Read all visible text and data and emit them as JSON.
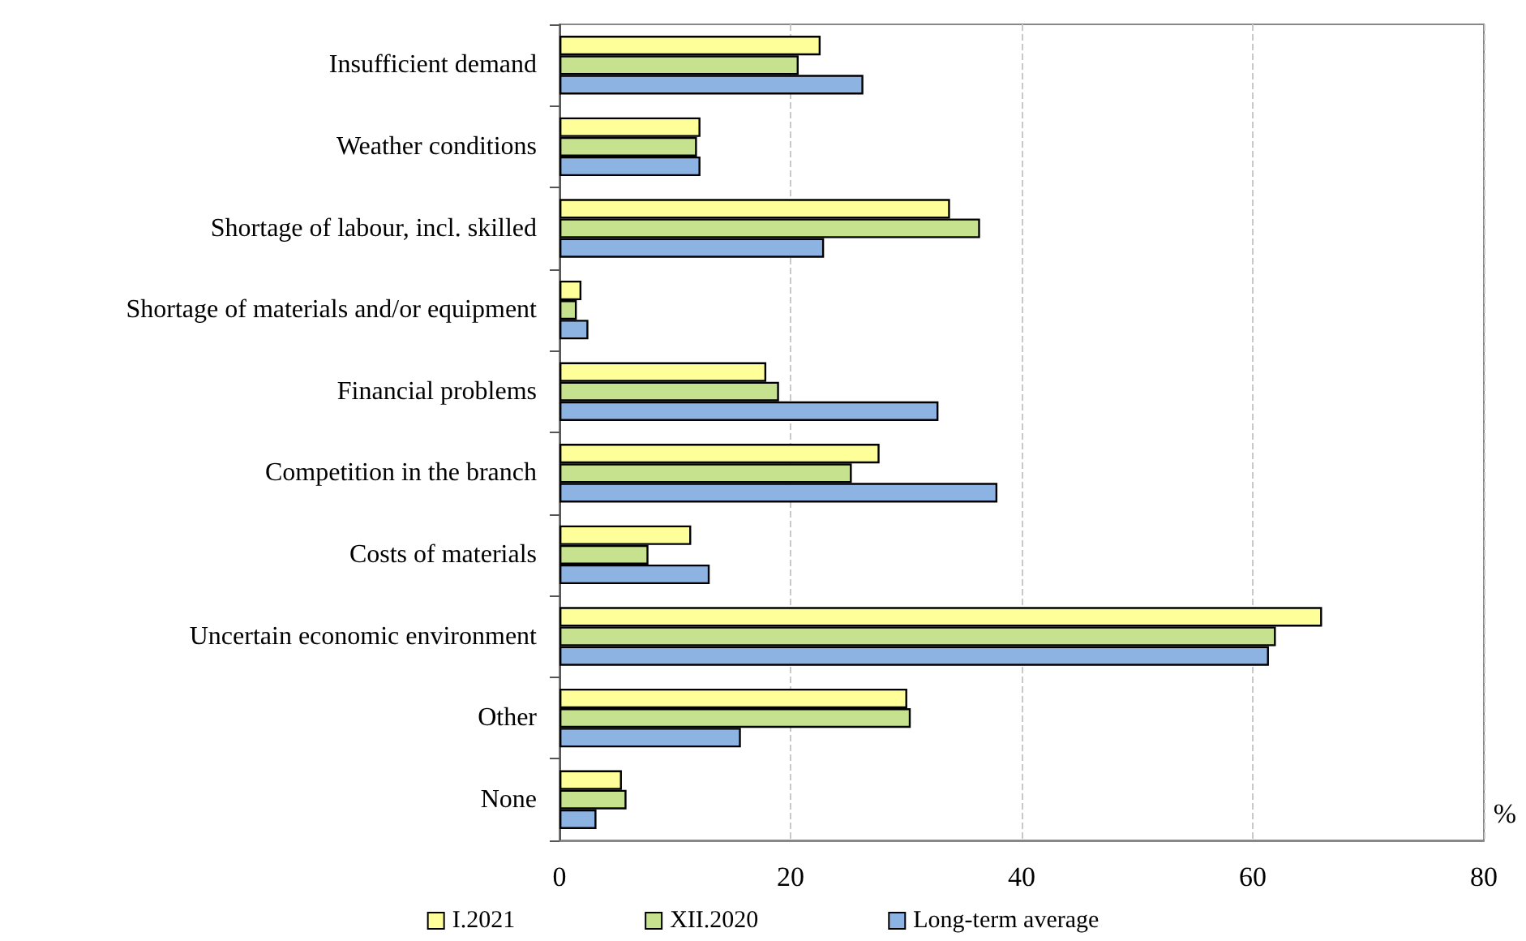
{
  "chart_data": {
    "type": "bar",
    "orientation": "horizontal",
    "xlabel": "%",
    "categories": [
      "Insufficient demand",
      "Weather conditions",
      "Shortage of labour, incl. skilled",
      "Shortage of materials and/or equipment",
      "Financial problems",
      "Competition in the branch",
      "Costs of materials",
      "Uncertain economic environment",
      "Other",
      "None"
    ],
    "series": [
      {
        "name": "I.2021",
        "color": "#ffff99",
        "values": [
          22.6,
          12.2,
          33.8,
          1.9,
          17.9,
          27.7,
          11.4,
          66.0,
          30.1,
          5.4
        ]
      },
      {
        "name": "XII.2020",
        "color": "#c6e28e",
        "values": [
          20.7,
          11.9,
          36.4,
          1.5,
          19.0,
          25.3,
          7.7,
          62.0,
          30.4,
          5.8
        ]
      },
      {
        "name": "Long-term average",
        "color": "#8db3e2",
        "values": [
          26.3,
          12.2,
          22.9,
          2.5,
          32.8,
          37.9,
          13.0,
          61.4,
          15.7,
          3.2
        ]
      }
    ],
    "xlim": [
      0,
      80
    ],
    "xticks": [
      0,
      20,
      40,
      60,
      80
    ],
    "grid": "x",
    "legend": "bottom"
  }
}
